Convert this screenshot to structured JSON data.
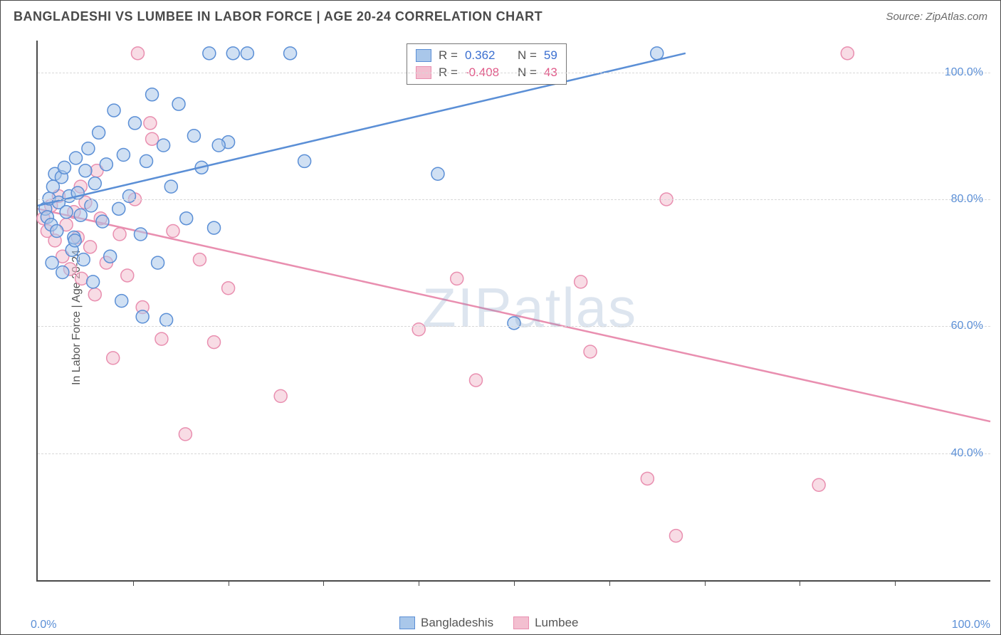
{
  "title": "BANGLADESHI VS LUMBEE IN LABOR FORCE | AGE 20-24 CORRELATION CHART",
  "source": "Source: ZipAtlas.com",
  "y_axis_label": "In Labor Force | Age 20-24",
  "watermark": "ZIPatlas",
  "chart": {
    "type": "scatter",
    "xlim": [
      0,
      100
    ],
    "ylim": [
      20,
      105
    ],
    "x_min_label": "0.0%",
    "x_max_label": "100.0%",
    "x_ticks": [
      10,
      20,
      30,
      40,
      50,
      60,
      70,
      80,
      90
    ],
    "y_gridlines": [
      40,
      60,
      80,
      100
    ],
    "y_tick_labels": [
      "40.0%",
      "60.0%",
      "80.0%",
      "100.0%"
    ],
    "grid_color": "#d8d8d8",
    "axis_color": "#4a4a4a",
    "background_color": "#ffffff",
    "tick_label_color": "#5b8fd6",
    "marker_radius": 9,
    "marker_stroke_width": 1.5,
    "line_width": 2.5,
    "series": [
      {
        "name": "Bangladeshis",
        "fill": "#a9c7ea",
        "stroke": "#5b8fd6",
        "fill_opacity": 0.55,
        "r_value": "0.362",
        "n_value": "59",
        "regression": {
          "x1": 0,
          "y1": 79,
          "x2": 68,
          "y2": 103
        },
        "points": [
          [
            0.8,
            78.5
          ],
          [
            1.0,
            77.2
          ],
          [
            1.2,
            80.1
          ],
          [
            1.4,
            76.0
          ],
          [
            1.6,
            82.0
          ],
          [
            1.8,
            84.0
          ],
          [
            2.0,
            75.0
          ],
          [
            2.2,
            79.5
          ],
          [
            2.5,
            83.5
          ],
          [
            2.8,
            85.0
          ],
          [
            3.0,
            78.0
          ],
          [
            3.3,
            80.5
          ],
          [
            3.6,
            72.0
          ],
          [
            3.8,
            74.0
          ],
          [
            4.0,
            86.5
          ],
          [
            4.2,
            81.0
          ],
          [
            4.5,
            77.5
          ],
          [
            4.8,
            70.5
          ],
          [
            5.0,
            84.5
          ],
          [
            5.3,
            88.0
          ],
          [
            5.6,
            79.0
          ],
          [
            6.0,
            82.5
          ],
          [
            6.4,
            90.5
          ],
          [
            6.8,
            76.5
          ],
          [
            7.2,
            85.5
          ],
          [
            7.6,
            71.0
          ],
          [
            8.0,
            94.0
          ],
          [
            8.5,
            78.5
          ],
          [
            9.0,
            87.0
          ],
          [
            9.6,
            80.5
          ],
          [
            10.2,
            92.0
          ],
          [
            10.8,
            74.5
          ],
          [
            11.4,
            86.0
          ],
          [
            12.0,
            96.5
          ],
          [
            12.6,
            70.0
          ],
          [
            13.2,
            88.5
          ],
          [
            14.0,
            82.0
          ],
          [
            14.8,
            95.0
          ],
          [
            15.6,
            77.0
          ],
          [
            16.4,
            90.0
          ],
          [
            17.2,
            85.0
          ],
          [
            18.0,
            103.0
          ],
          [
            1.5,
            70.0
          ],
          [
            2.6,
            68.5
          ],
          [
            3.9,
            73.5
          ],
          [
            5.8,
            67.0
          ],
          [
            8.8,
            64.0
          ],
          [
            11.0,
            61.5
          ],
          [
            20.5,
            103.0
          ],
          [
            22.0,
            103.0
          ],
          [
            26.5,
            103.0
          ],
          [
            20.0,
            89.0
          ],
          [
            19.0,
            88.5
          ],
          [
            18.5,
            75.5
          ],
          [
            28.0,
            86.0
          ],
          [
            42.0,
            84.0
          ],
          [
            65.0,
            103.0
          ],
          [
            50.0,
            60.5
          ],
          [
            13.5,
            61.0
          ]
        ]
      },
      {
        "name": "Lumbee",
        "fill": "#f3bfd0",
        "stroke": "#e98fb0",
        "fill_opacity": 0.55,
        "r_value": "-0.408",
        "n_value": "43",
        "regression": {
          "x1": 0,
          "y1": 78.5,
          "x2": 100,
          "y2": 45
        },
        "points": [
          [
            0.6,
            77.0
          ],
          [
            1.0,
            75.0
          ],
          [
            1.4,
            79.0
          ],
          [
            1.8,
            73.5
          ],
          [
            2.2,
            80.5
          ],
          [
            2.6,
            71.0
          ],
          [
            3.0,
            76.0
          ],
          [
            3.4,
            69.0
          ],
          [
            3.8,
            78.0
          ],
          [
            4.2,
            74.0
          ],
          [
            4.6,
            67.5
          ],
          [
            5.0,
            79.5
          ],
          [
            5.5,
            72.5
          ],
          [
            6.0,
            65.0
          ],
          [
            6.6,
            77.0
          ],
          [
            7.2,
            70.0
          ],
          [
            7.9,
            55.0
          ],
          [
            8.6,
            74.5
          ],
          [
            9.4,
            68.0
          ],
          [
            10.2,
            80.0
          ],
          [
            11.0,
            63.0
          ],
          [
            12.0,
            89.5
          ],
          [
            13.0,
            58.0
          ],
          [
            14.2,
            75.0
          ],
          [
            15.5,
            43.0
          ],
          [
            17.0,
            70.5
          ],
          [
            18.5,
            57.5
          ],
          [
            20.0,
            66.0
          ],
          [
            10.5,
            103.0
          ],
          [
            11.8,
            92.0
          ],
          [
            25.5,
            49.0
          ],
          [
            6.2,
            84.5
          ],
          [
            4.5,
            82.0
          ],
          [
            40.0,
            59.5
          ],
          [
            44.0,
            67.5
          ],
          [
            46.0,
            51.5
          ],
          [
            57.0,
            67.0
          ],
          [
            58.0,
            56.0
          ],
          [
            64.0,
            36.0
          ],
          [
            66.0,
            80.0
          ],
          [
            67.0,
            27.0
          ],
          [
            82.0,
            35.0
          ],
          [
            85.0,
            103.0
          ]
        ]
      }
    ]
  },
  "legend_top": {
    "r_label": "R =",
    "n_label": "N ="
  },
  "legend_bottom": {
    "items": [
      "Bangladeshis",
      "Lumbee"
    ]
  }
}
